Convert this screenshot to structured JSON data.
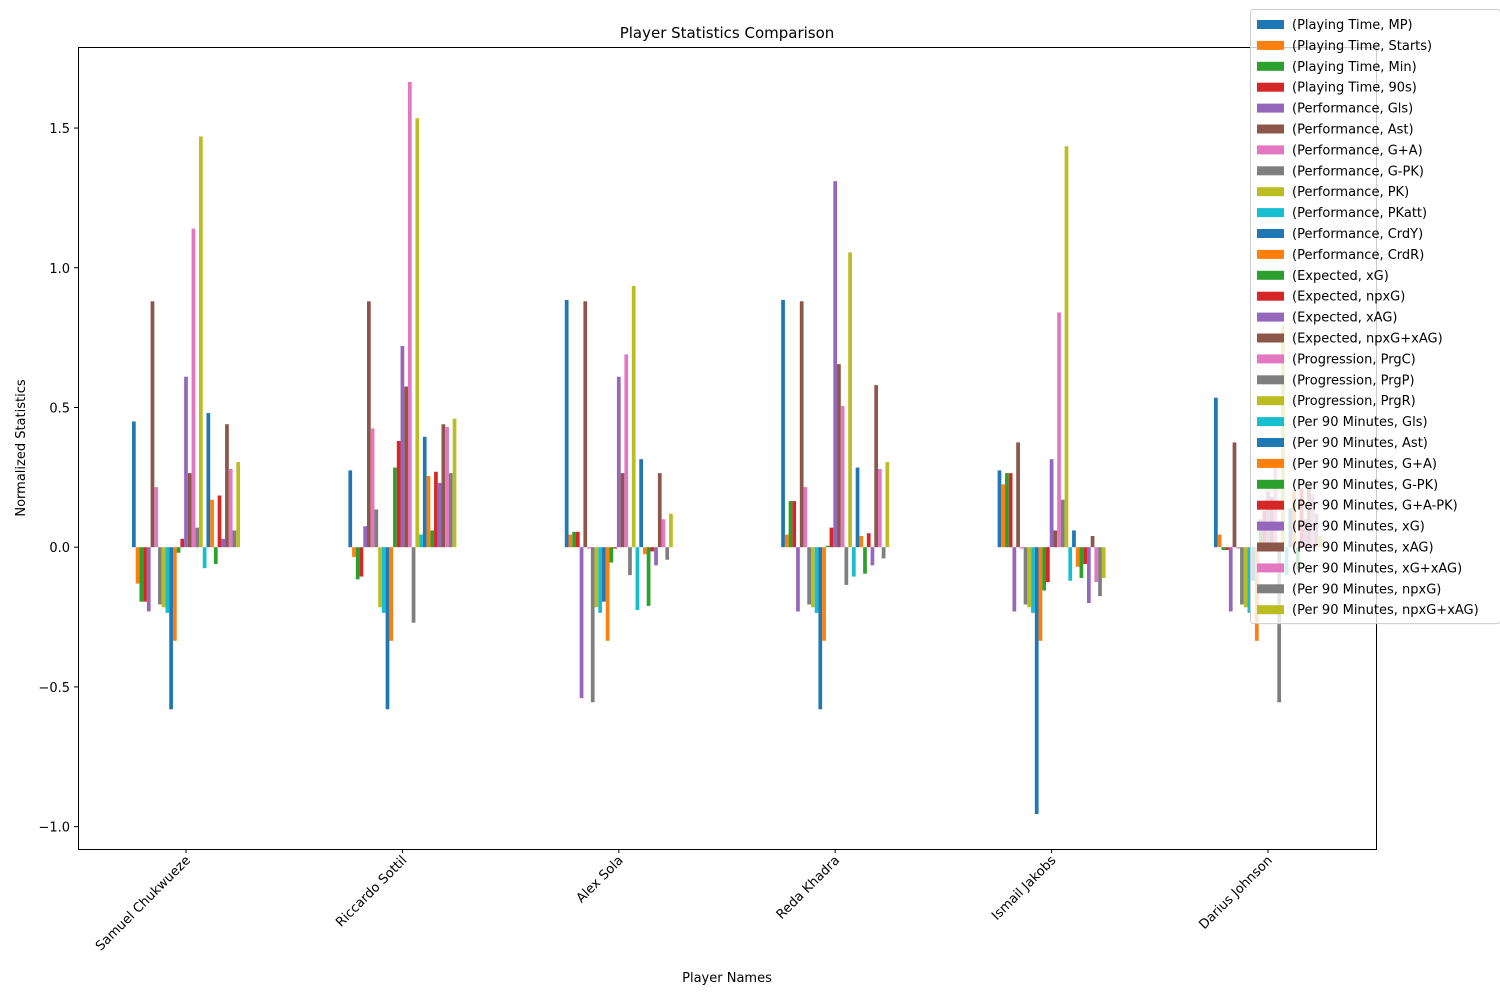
{
  "chart_data": {
    "type": "bar",
    "title": "Player Statistics Comparison",
    "xlabel": "Player Names",
    "ylabel": "Normalized Statistics",
    "ylim": [
      -1.08,
      1.79
    ],
    "yticks": [
      -1.0,
      -0.5,
      0.0,
      0.5,
      1.0,
      1.5
    ],
    "ytick_labels": [
      "−1.0",
      "−0.5",
      "0.0",
      "0.5",
      "1.0",
      "1.5"
    ],
    "grid": false,
    "legend_position": "top-right",
    "categories": [
      "Samuel Chukwueze",
      "Riccardo Sottil",
      "Alex Sola",
      "Reda Khadra",
      "Ismail Jakobs",
      "Darius Johnson"
    ],
    "series": [
      {
        "name": "(Playing Time, MP)",
        "color": "#1f77b4",
        "values": [
          0.45,
          0.275,
          0.885,
          0.885,
          0.275,
          0.535
        ]
      },
      {
        "name": "(Playing Time, Starts)",
        "color": "#ff7f0e",
        "values": [
          -0.13,
          -0.035,
          0.045,
          0.045,
          0.225,
          0.045
        ]
      },
      {
        "name": "(Playing Time, Min)",
        "color": "#2ca02c",
        "values": [
          -0.195,
          -0.115,
          0.055,
          0.165,
          0.265,
          -0.01
        ]
      },
      {
        "name": "(Playing Time, 90s)",
        "color": "#d62728",
        "values": [
          -0.195,
          -0.105,
          0.055,
          0.165,
          0.265,
          -0.01
        ]
      },
      {
        "name": "(Performance, Gls)",
        "color": "#9467bd",
        "values": [
          -0.23,
          0.075,
          -0.54,
          -0.23,
          -0.23,
          -0.23
        ]
      },
      {
        "name": "(Performance, Ast)",
        "color": "#8c564b",
        "values": [
          0.88,
          0.88,
          0.88,
          0.88,
          0.375,
          0.375
        ]
      },
      {
        "name": "(Performance, G+A)",
        "color": "#e377c2",
        "values": [
          0.215,
          0.425,
          -0.005,
          0.215,
          -0.005,
          -0.005
        ]
      },
      {
        "name": "(Performance, G-PK)",
        "color": "#7f7f7f",
        "values": [
          -0.205,
          0.135,
          -0.555,
          -0.205,
          -0.205,
          -0.205
        ]
      },
      {
        "name": "(Performance, PK)",
        "color": "#bcbd22",
        "values": [
          -0.215,
          -0.215,
          -0.215,
          -0.215,
          -0.215,
          -0.215
        ]
      },
      {
        "name": "(Performance, PKatt)",
        "color": "#17becf",
        "values": [
          -0.235,
          -0.235,
          -0.235,
          -0.235,
          -0.235,
          -0.235
        ]
      },
      {
        "name": "(Performance, CrdY)",
        "color": "#1f77b4",
        "values": [
          -0.58,
          -0.58,
          -0.195,
          -0.58,
          -0.955,
          -0.12
        ]
      },
      {
        "name": "(Performance, CrdR)",
        "color": "#ff7f0e",
        "values": [
          -0.335,
          -0.335,
          -0.335,
          -0.335,
          -0.335,
          -0.335
        ]
      },
      {
        "name": "(Expected, xG)",
        "color": "#2ca02c",
        "values": [
          -0.02,
          0.285,
          -0.055,
          0.005,
          -0.155,
          0.1
        ]
      },
      {
        "name": "(Expected, npxG)",
        "color": "#d62728",
        "values": [
          0.03,
          0.38,
          -0.005,
          0.07,
          -0.125,
          0.13
        ]
      },
      {
        "name": "(Expected, xAG)",
        "color": "#9467bd",
        "values": [
          0.61,
          0.72,
          0.61,
          1.31,
          0.315,
          0.2
        ]
      },
      {
        "name": "(Expected, npxG+xAG)",
        "color": "#8c564b",
        "values": [
          0.265,
          0.575,
          0.265,
          0.655,
          0.06,
          0.18
        ]
      },
      {
        "name": "(Progression, PrgC)",
        "color": "#e377c2",
        "values": [
          1.14,
          1.665,
          0.69,
          0.505,
          0.84,
          0.3
        ]
      },
      {
        "name": "(Progression, PrgP)",
        "color": "#7f7f7f",
        "values": [
          0.07,
          -0.27,
          -0.1,
          -0.135,
          0.17,
          -0.555
        ]
      },
      {
        "name": "(Progression, PrgR)",
        "color": "#bcbd22",
        "values": [
          1.47,
          1.535,
          0.935,
          1.055,
          1.435,
          0.79
        ]
      },
      {
        "name": "(Per 90 Minutes, Gls)",
        "color": "#17becf",
        "values": [
          -0.075,
          0.045,
          -0.225,
          -0.105,
          -0.12,
          -0.1
        ]
      },
      {
        "name": "(Per 90 Minutes, Ast)",
        "color": "#1f77b4",
        "values": [
          0.48,
          0.395,
          0.315,
          0.285,
          0.06,
          0.14
        ]
      },
      {
        "name": "(Per 90 Minutes, G+A)",
        "color": "#ff7f0e",
        "values": [
          0.17,
          0.255,
          -0.025,
          0.04,
          -0.07,
          0.2
        ]
      },
      {
        "name": "(Per 90 Minutes, G-PK)",
        "color": "#2ca02c",
        "values": [
          -0.06,
          0.06,
          -0.21,
          -0.095,
          -0.11,
          -0.08
        ]
      },
      {
        "name": "(Per 90 Minutes, G+A-PK)",
        "color": "#d62728",
        "values": [
          0.185,
          0.27,
          -0.015,
          0.05,
          -0.06,
          0.21
        ]
      },
      {
        "name": "(Per 90 Minutes, xG)",
        "color": "#9467bd",
        "values": [
          0.03,
          0.23,
          -0.065,
          -0.065,
          -0.2,
          0.1
        ]
      },
      {
        "name": "(Per 90 Minutes, xAG)",
        "color": "#8c564b",
        "values": [
          0.44,
          0.44,
          0.265,
          0.58,
          0.04,
          0.22
        ]
      },
      {
        "name": "(Per 90 Minutes, xG+xAG)",
        "color": "#e377c2",
        "values": [
          0.28,
          0.43,
          0.1,
          0.28,
          -0.125,
          0.19
        ]
      },
      {
        "name": "(Per 90 Minutes, npxG)",
        "color": "#7f7f7f",
        "values": [
          0.06,
          0.265,
          -0.045,
          -0.04,
          -0.175,
          0.12
        ]
      },
      {
        "name": "(Per 90 Minutes, npxG+xAG)",
        "color": "#bcbd22",
        "values": [
          0.305,
          0.46,
          0.12,
          0.305,
          -0.11,
          0.04
        ]
      }
    ]
  }
}
